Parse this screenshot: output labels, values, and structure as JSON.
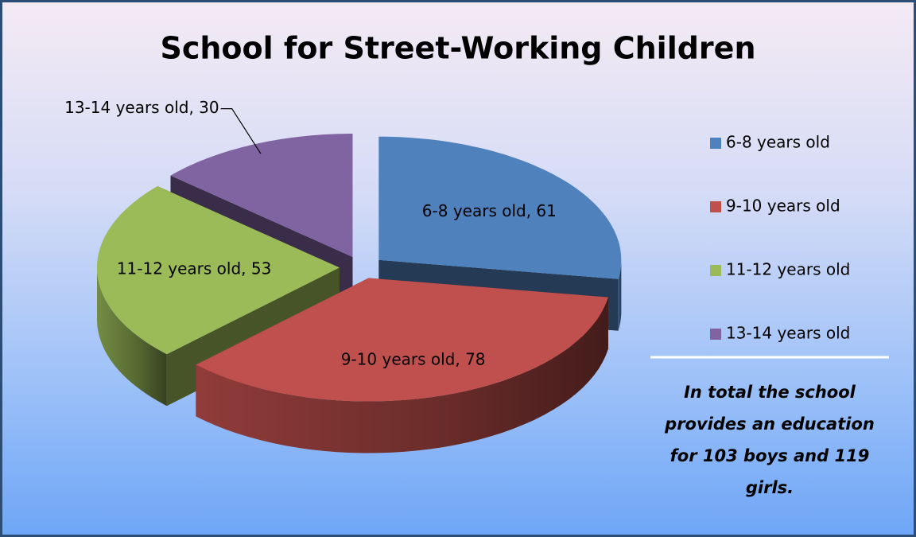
{
  "chart_data": {
    "type": "pie3d",
    "title": "School for Street-Working Children",
    "categories": [
      "6-8 years old",
      "9-10 years old",
      "11-12 years old",
      "13-14 years old"
    ],
    "values": [
      61,
      78,
      53,
      30
    ],
    "value_labels": [
      "6-8 years old, 61",
      "9-10 years old, 78",
      "11-12 years old, 53",
      "13-14 years old, 30"
    ],
    "colors": [
      "#4f81bd",
      "#c0504d",
      "#9bbb59",
      "#8064a2"
    ],
    "legend": "right",
    "annotation": "In total the school provides an education for 103 boys and 119 girls."
  }
}
